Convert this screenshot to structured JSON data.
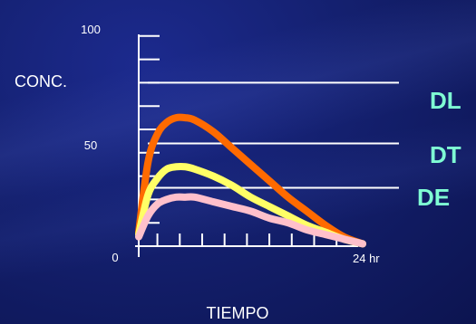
{
  "chart_data": {
    "type": "line",
    "ylabel": "CONC.",
    "xlabel": "TIEMPO",
    "y_ticks": [
      "0",
      "50",
      "100"
    ],
    "x_end_label": "24 hr",
    "ylim": [
      0,
      100
    ],
    "xlim": [
      0,
      24
    ],
    "levels": [
      {
        "name": "DL",
        "value": 70,
        "color": "#7fffd4"
      },
      {
        "name": "DT",
        "value": 44,
        "color": "#7fffd4"
      },
      {
        "name": "DE",
        "value": 25,
        "color": "#7fffd4"
      }
    ],
    "series": [
      {
        "color": "#ff6a00",
        "x": [
          0,
          1,
          2,
          3,
          4,
          5,
          6,
          8,
          10,
          12,
          14,
          16,
          18,
          20,
          22,
          24
        ],
        "y": [
          6,
          36,
          48,
          53,
          55,
          55,
          54,
          49,
          42,
          35,
          28,
          21,
          15,
          9,
          4,
          1
        ]
      },
      {
        "color": "#ffff66",
        "x": [
          0,
          1,
          2,
          3,
          4,
          5,
          6,
          8,
          10,
          12,
          14,
          16,
          18,
          20,
          22,
          24
        ],
        "y": [
          5,
          22,
          29,
          33,
          34,
          34,
          33,
          30,
          26,
          21,
          17,
          13,
          9,
          6,
          3,
          1
        ]
      },
      {
        "color": "#ffc0cb",
        "x": [
          0,
          1,
          2,
          3,
          4,
          5,
          6,
          8,
          10,
          12,
          14,
          16,
          18,
          20,
          22,
          24
        ],
        "y": [
          4,
          13,
          18,
          20,
          21,
          21,
          21,
          19,
          17,
          15,
          12,
          10,
          7,
          5,
          3,
          1
        ]
      }
    ]
  }
}
